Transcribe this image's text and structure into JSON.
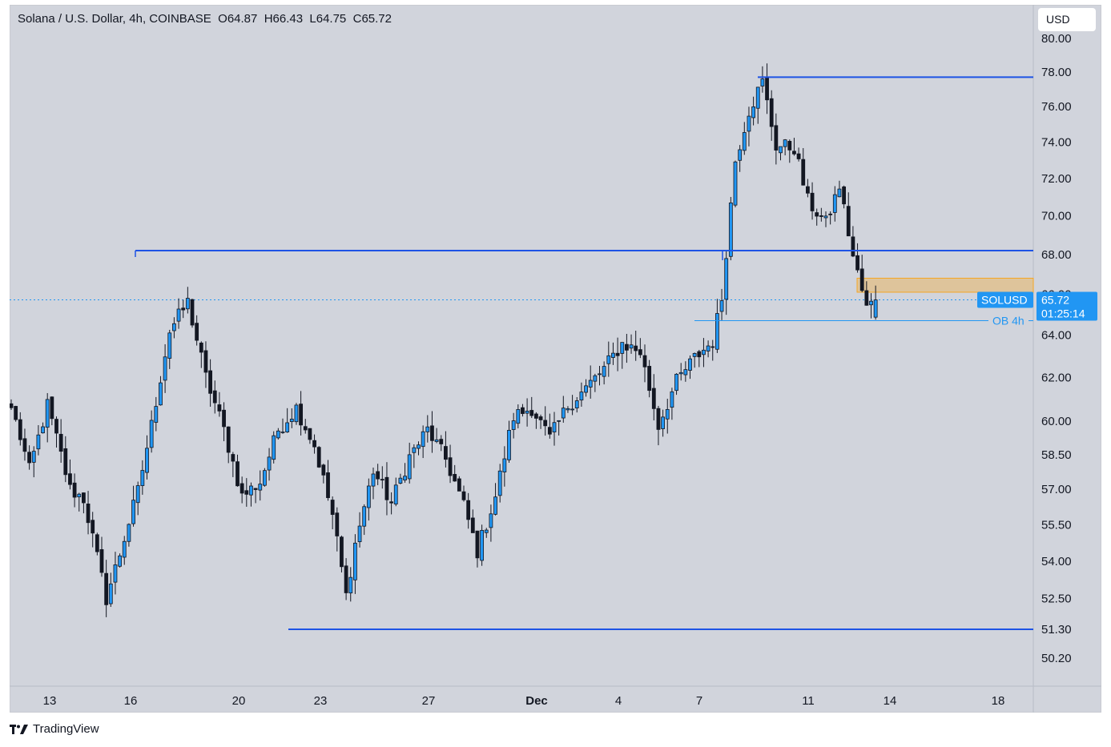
{
  "header": {
    "symbol": "Solana / U.S. Dollar",
    "interval": "4h",
    "exchange": "COINBASE",
    "ohlc": "O64.87  H66.43  L64.75  C65.72"
  },
  "currency_button": "USD",
  "footer_logo": "TradingView",
  "chart_data": {
    "type": "candlestick",
    "title": "Solana / U.S. Dollar, 4h, COINBASE",
    "y_axis": {
      "scale": "log",
      "range": [
        49.5,
        80.6
      ],
      "ticks": [
        "50.20",
        "51.30",
        "52.50",
        "54.00",
        "55.50",
        "57.00",
        "58.50",
        "60.00",
        "62.00",
        "64.00",
        "66.00",
        "68.00",
        "70.00",
        "72.00",
        "74.00",
        "76.00",
        "78.00",
        "80.00"
      ],
      "position": "right"
    },
    "x_axis": {
      "ticks": [
        {
          "label": "13",
          "bold": false
        },
        {
          "label": "16",
          "bold": false
        },
        {
          "label": "20",
          "bold": false
        },
        {
          "label": "23",
          "bold": false
        },
        {
          "label": "27",
          "bold": false
        },
        {
          "label": "Dec",
          "bold": true
        },
        {
          "label": "4",
          "bold": false
        },
        {
          "label": "7",
          "bold": false
        },
        {
          "label": "11",
          "bold": false
        },
        {
          "label": "14",
          "bold": false
        },
        {
          "label": "18",
          "bold": false
        }
      ]
    },
    "last_price": {
      "symbol": "SOLUSD",
      "value": "65.72",
      "countdown": "01:25:14",
      "price": 65.72
    },
    "horizontal_levels": [
      {
        "price": 77.7,
        "label": "78.00"
      },
      {
        "price": 68.2,
        "label": "68.00"
      },
      {
        "price": 51.3,
        "label": "51.30"
      }
    ],
    "order_block": {
      "label": "OB 4h",
      "price": 64.7
    },
    "zone": {
      "top": 66.8,
      "bottom": 66.1
    },
    "colors": {
      "up": "#2196f3",
      "down": "#131722",
      "level": "#1e53e5",
      "zone": "#f5a623",
      "last_price": "#2196f3",
      "background": "#d1d4dc"
    },
    "waypoints": [
      [
        0,
        60.6
      ],
      [
        2,
        59.3
      ],
      [
        4,
        57.8
      ],
      [
        8,
        60.7
      ],
      [
        13,
        57.0
      ],
      [
        16,
        56.6
      ],
      [
        21,
        52.5
      ],
      [
        24,
        54.3
      ],
      [
        28,
        56.9
      ],
      [
        31,
        59.8
      ],
      [
        35,
        64.2
      ],
      [
        39,
        65.6
      ],
      [
        43,
        62.0
      ],
      [
        47,
        59.6
      ],
      [
        51,
        56.7
      ],
      [
        55,
        57.3
      ],
      [
        59,
        59.6
      ],
      [
        63,
        60.6
      ],
      [
        67,
        58.9
      ],
      [
        71,
        55.9
      ],
      [
        74,
        52.6
      ],
      [
        76,
        54.7
      ],
      [
        80,
        57.8
      ],
      [
        84,
        56.4
      ],
      [
        88,
        58.4
      ],
      [
        92,
        59.6
      ],
      [
        96,
        58.3
      ],
      [
        100,
        56.3
      ],
      [
        103,
        54.4
      ],
      [
        107,
        56.7
      ],
      [
        111,
        60.2
      ],
      [
        115,
        60.6
      ],
      [
        119,
        59.2
      ],
      [
        123,
        60.7
      ],
      [
        127,
        61.5
      ],
      [
        131,
        62.4
      ],
      [
        135,
        63.6
      ],
      [
        139,
        63.2
      ],
      [
        143,
        59.8
      ],
      [
        147,
        61.8
      ],
      [
        151,
        62.9
      ],
      [
        155,
        63.7
      ],
      [
        157,
        65.8
      ],
      [
        160,
        73.0
      ],
      [
        163,
        75.8
      ],
      [
        166,
        77.4
      ],
      [
        169,
        73.8
      ],
      [
        173,
        73.7
      ],
      [
        176,
        70.8
      ],
      [
        180,
        69.6
      ],
      [
        183,
        71.6
      ],
      [
        186,
        67.9
      ],
      [
        189,
        65.3
      ],
      [
        191,
        65.72
      ]
    ]
  }
}
